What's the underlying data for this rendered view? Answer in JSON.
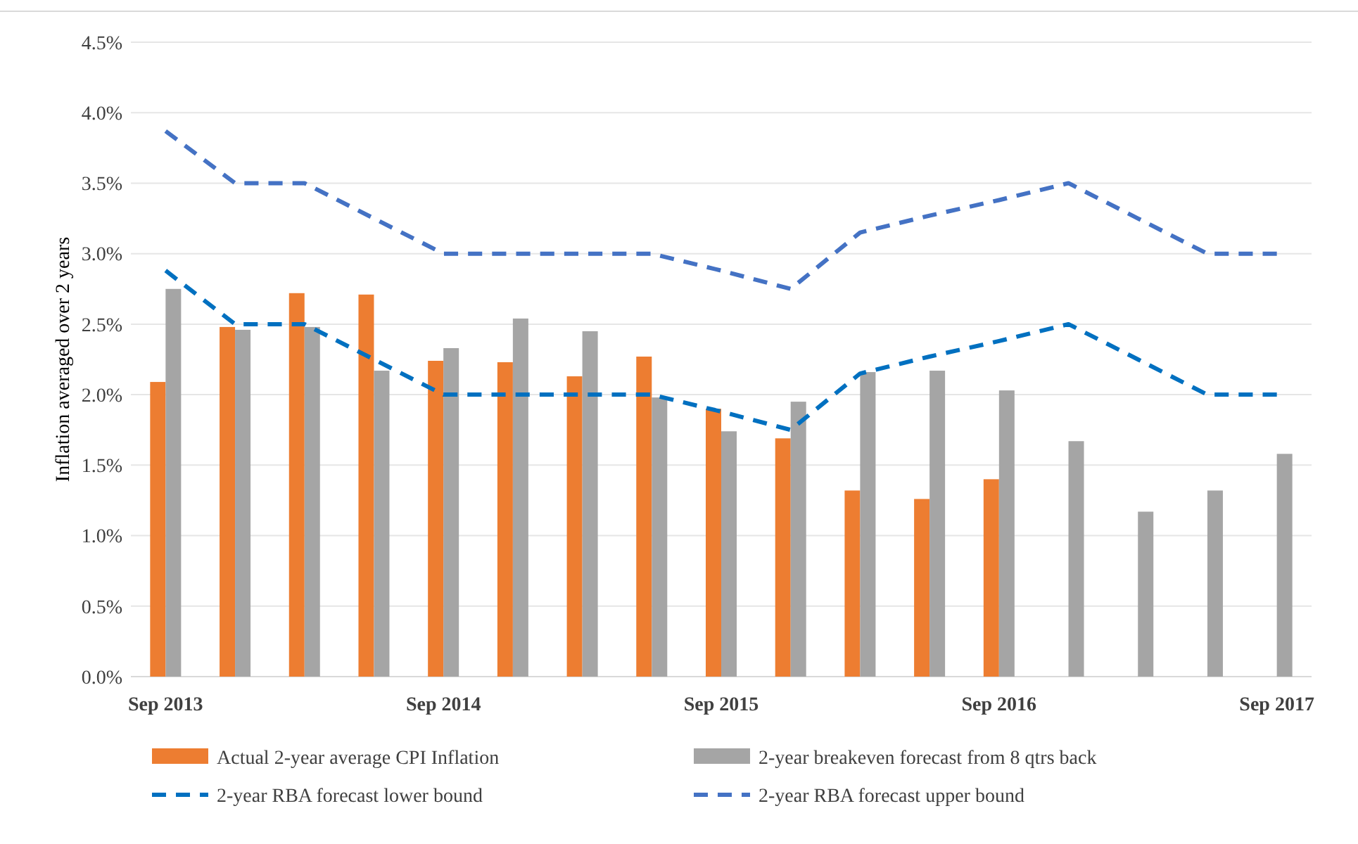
{
  "chart_data": {
    "type": "bar",
    "ylabel": "Inflation averaged over 2 years",
    "categories": [
      "Sep 2013",
      null,
      null,
      null,
      "Sep 2014",
      null,
      null,
      null,
      "Sep 2015",
      null,
      null,
      null,
      "Sep 2016",
      null,
      null,
      null,
      "Sep 2017"
    ],
    "series": [
      {
        "name": "Actual 2-year average CPI Inflation",
        "color": "#ed7d31",
        "values": [
          2.09,
          2.48,
          2.72,
          2.71,
          2.24,
          2.23,
          2.13,
          2.27,
          1.9,
          1.69,
          1.32,
          1.26,
          1.4,
          null,
          null,
          null,
          null
        ]
      },
      {
        "name": "2-year breakeven forecast from 8 qtrs back",
        "color": "#a5a5a5",
        "values": [
          2.75,
          2.46,
          2.48,
          2.17,
          2.33,
          2.54,
          2.45,
          1.98,
          1.74,
          1.95,
          2.16,
          2.17,
          2.03,
          1.67,
          1.17,
          1.32,
          1.58
        ]
      },
      {
        "name": "2-year RBA forecast lower bound",
        "type": "line",
        "line_style": "dashed",
        "color": "#0070c0",
        "values": [
          2.88,
          2.5,
          2.5,
          2.25,
          2.0,
          2.0,
          2.0,
          2.0,
          1.88,
          1.75,
          2.15,
          2.27,
          2.38,
          2.5,
          2.25,
          2.0,
          2.0
        ]
      },
      {
        "name": "2-year RBA forecast upper bound",
        "type": "line",
        "line_style": "dashed",
        "color": "#4472c4",
        "values": [
          3.87,
          3.5,
          3.5,
          3.25,
          3.0,
          3.0,
          3.0,
          3.0,
          2.88,
          2.75,
          3.15,
          3.27,
          3.38,
          3.5,
          3.25,
          3.0,
          3.0
        ]
      }
    ],
    "ylim": [
      0,
      4.5
    ],
    "yticks": [
      {
        "value": 0,
        "label": "0.0%"
      },
      {
        "value": 0.5,
        "label": "0.5%"
      },
      {
        "value": 1,
        "label": "1.0%"
      },
      {
        "value": 1.5,
        "label": "1.5%"
      },
      {
        "value": 2,
        "label": "2.0%"
      },
      {
        "value": 2.5,
        "label": "2.5%"
      },
      {
        "value": 3,
        "label": "3.0%"
      },
      {
        "value": 3.5,
        "label": "3.5%"
      },
      {
        "value": 4,
        "label": "4.0%"
      },
      {
        "value": 4.5,
        "label": "4.5%"
      }
    ],
    "grid": "y",
    "legend": "bottom"
  }
}
